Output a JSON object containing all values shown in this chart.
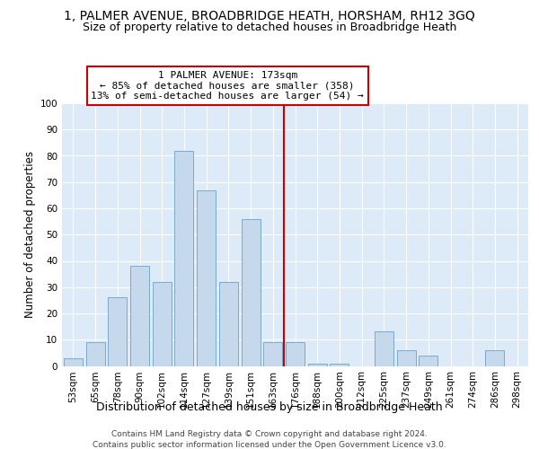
{
  "title1": "1, PALMER AVENUE, BROADBRIDGE HEATH, HORSHAM, RH12 3GQ",
  "title2": "Size of property relative to detached houses in Broadbridge Heath",
  "xlabel": "Distribution of detached houses by size in Broadbridge Heath",
  "ylabel": "Number of detached properties",
  "footnote1": "Contains HM Land Registry data © Crown copyright and database right 2024.",
  "footnote2": "Contains public sector information licensed under the Open Government Licence v3.0.",
  "categories": [
    "53sqm",
    "65sqm",
    "78sqm",
    "90sqm",
    "102sqm",
    "114sqm",
    "127sqm",
    "139sqm",
    "151sqm",
    "163sqm",
    "176sqm",
    "188sqm",
    "200sqm",
    "212sqm",
    "225sqm",
    "237sqm",
    "249sqm",
    "261sqm",
    "274sqm",
    "286sqm",
    "298sqm"
  ],
  "values": [
    3,
    9,
    26,
    38,
    32,
    82,
    67,
    32,
    56,
    9,
    9,
    1,
    1,
    0,
    13,
    6,
    4,
    0,
    0,
    6,
    0
  ],
  "bar_color": "#c5d8ec",
  "bar_edge_color": "#7aaacb",
  "vline_position": 9.5,
  "vline_color": "#cc0000",
  "annotation_line1": "1 PALMER AVENUE: 173sqm",
  "annotation_line2": "← 85% of detached houses are smaller (358)",
  "annotation_line3": "13% of semi-detached houses are larger (54) →",
  "annotation_box_facecolor": "#ffffff",
  "annotation_box_edgecolor": "#cc0000",
  "ylim": [
    0,
    100
  ],
  "yticks": [
    0,
    10,
    20,
    30,
    40,
    50,
    60,
    70,
    80,
    90,
    100
  ],
  "bg_color": "#ddeaf7",
  "title1_fontsize": 10,
  "title2_fontsize": 9,
  "xlabel_fontsize": 9,
  "ylabel_fontsize": 8.5,
  "tick_fontsize": 7.5,
  "annotation_fontsize": 8,
  "footnote_fontsize": 6.5
}
